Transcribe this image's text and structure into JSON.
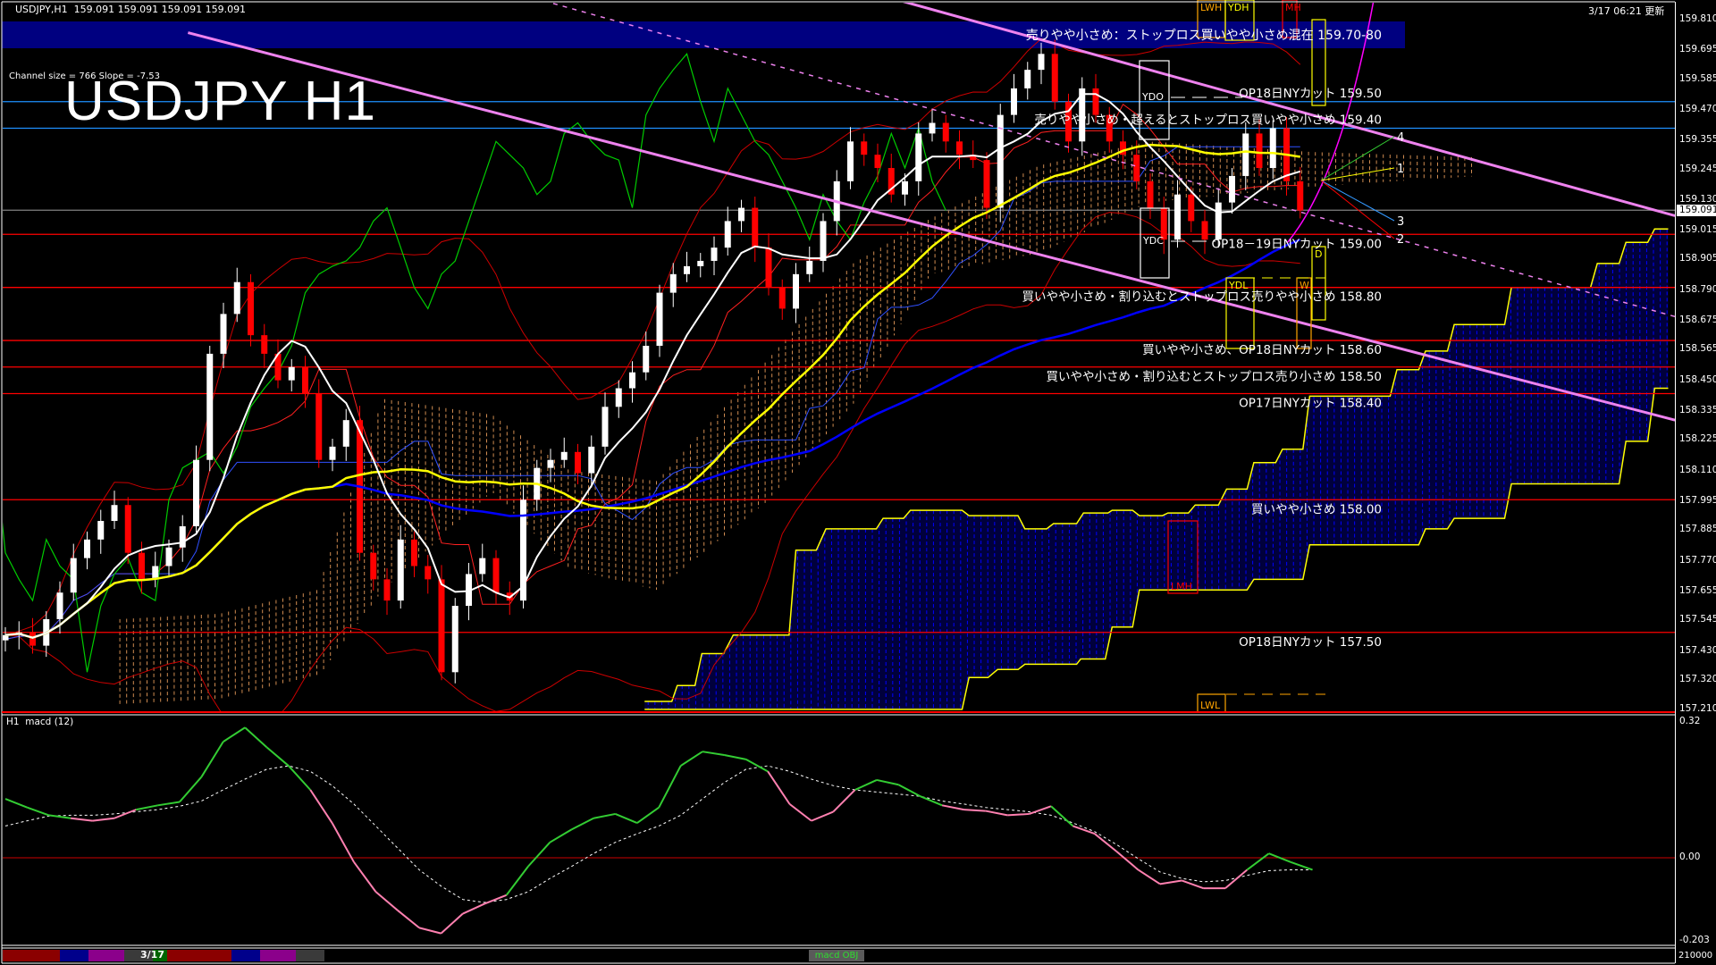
{
  "header": {
    "symbol_info": "USDJPY,H1  159.091 159.091 159.091 159.091",
    "updated": "3/17 06:21 更新",
    "channel_info": "Channel size = 766 Slope = -7.53",
    "big_title": "USDJPY H1"
  },
  "colors": {
    "background": "#000000",
    "up_candle": "#ffffff",
    "down_candle": "#ff0000",
    "banner": "#000080",
    "level_red": "#ff0000",
    "level_blue": "#1e90ff",
    "trendline": "#ee82ee",
    "cloud_future": "#0000ff",
    "cloud_edge": "#ffff00",
    "cloud_past": "#f4a460",
    "macd_up": "#33cc33",
    "macd_down": "#ff80b0",
    "ma_fast": "#ffffff",
    "ma_mid": "#ffff00",
    "ma_slow": "#0000ff",
    "chikou": "#00cc00"
  },
  "chart_data": {
    "type": "candlestick",
    "ylim": [
      157.21,
      159.81
    ],
    "y_ticks": [
      "159.810",
      "159.695",
      "159.585",
      "159.470",
      "159.355",
      "159.245",
      "159.130",
      "159.015",
      "158.905",
      "158.790",
      "158.675",
      "158.565",
      "158.450",
      "158.335",
      "158.225",
      "158.110",
      "157.995",
      "157.885",
      "157.770",
      "157.655",
      "157.545",
      "157.430",
      "157.320",
      "157.210"
    ],
    "current_price": "159.091",
    "first_open": 157.47,
    "closes": [
      157.49,
      157.5,
      157.45,
      157.55,
      157.65,
      157.78,
      157.85,
      157.92,
      157.98,
      157.8,
      157.7,
      157.75,
      157.82,
      157.9,
      158.15,
      158.55,
      158.7,
      158.82,
      158.62,
      158.55,
      158.45,
      158.5,
      158.4,
      158.15,
      158.2,
      158.3,
      157.8,
      157.7,
      157.62,
      157.85,
      157.75,
      157.7,
      157.35,
      157.6,
      157.72,
      157.78,
      157.65,
      157.62,
      158.0,
      158.12,
      158.15,
      158.18,
      158.1,
      158.2,
      158.35,
      158.42,
      158.48,
      158.58,
      158.78,
      158.85,
      158.88,
      158.9,
      158.95,
      159.05,
      159.1,
      158.95,
      158.8,
      158.72,
      158.85,
      158.9,
      159.05,
      159.2,
      159.35,
      159.3,
      159.25,
      159.15,
      159.2,
      159.38,
      159.42,
      159.35,
      159.3,
      159.28,
      159.1,
      159.45,
      159.55,
      159.62,
      159.68,
      159.5,
      159.35,
      159.55,
      159.45,
      159.35,
      159.3,
      159.2,
      159.1,
      158.98,
      159.15,
      159.05,
      158.98,
      159.12,
      159.22,
      159.38,
      159.25,
      159.4,
      159.2,
      159.09
    ],
    "future_cloud": {
      "upper_steps": [
        [
          46.9,
          48.9,
          157.24
        ],
        [
          49.3,
          50.6,
          157.3
        ],
        [
          51.1,
          52.7,
          157.42
        ],
        [
          53.4,
          57.5,
          157.49
        ],
        [
          58.0,
          59.5,
          157.81
        ],
        [
          60.2,
          63.9,
          157.89
        ],
        [
          64.4,
          65.9,
          157.93
        ],
        [
          66.4,
          70.2,
          157.96
        ],
        [
          70.7,
          74.3,
          157.94
        ],
        [
          74.8,
          76.4,
          157.89
        ],
        [
          76.9,
          78.6,
          157.91
        ],
        [
          79.1,
          80.9,
          157.95
        ],
        [
          81.2,
          82.7,
          157.96
        ],
        [
          83.2,
          84.9,
          157.94
        ],
        [
          85.3,
          86.8,
          157.95
        ],
        [
          87.3,
          89.0,
          157.98
        ],
        [
          89.6,
          91.1,
          158.04
        ],
        [
          91.6,
          93.2,
          158.14
        ],
        [
          93.7,
          95.2,
          158.19
        ],
        [
          95.7,
          101.6,
          158.39
        ],
        [
          102.1,
          103.7,
          158.49
        ],
        [
          104.2,
          105.8,
          158.56
        ],
        [
          106.3,
          110.0,
          158.66
        ],
        [
          110.5,
          116.3,
          158.8
        ],
        [
          116.8,
          118.4,
          158.89
        ],
        [
          118.9,
          120.5,
          158.97
        ],
        [
          121.0,
          122.0,
          159.02
        ]
      ],
      "lower_steps": [
        [
          46.9,
          70.2,
          157.21
        ],
        [
          70.7,
          72.1,
          157.33
        ],
        [
          72.8,
          74.3,
          157.36
        ],
        [
          74.8,
          78.6,
          157.38
        ],
        [
          78.9,
          80.7,
          157.4
        ],
        [
          81.2,
          82.7,
          157.52
        ],
        [
          83.2,
          91.1,
          157.66
        ],
        [
          91.6,
          95.2,
          157.7
        ],
        [
          95.7,
          103.7,
          157.83
        ],
        [
          104.2,
          105.8,
          157.89
        ],
        [
          106.3,
          110.0,
          157.93
        ],
        [
          110.5,
          118.4,
          158.06
        ],
        [
          118.9,
          120.5,
          158.22
        ],
        [
          121.0,
          122.0,
          158.42
        ]
      ]
    },
    "past_cloud": [
      [
        8.4,
        157.55,
        157.22
      ],
      [
        15.7,
        157.57,
        157.25
      ],
      [
        22.9,
        157.66,
        157.33
      ],
      [
        27.7,
        158.38,
        157.66
      ],
      [
        35.7,
        158.32,
        158.03
      ],
      [
        41.4,
        158.11,
        157.74
      ],
      [
        47.8,
        158.07,
        157.66
      ],
      [
        55.8,
        158.52,
        157.99
      ],
      [
        62.2,
        158.89,
        158.36
      ],
      [
        67.9,
        159.06,
        158.85
      ],
      [
        75.9,
        159.26,
        158.93
      ],
      [
        83.9,
        159.35,
        159.12
      ],
      [
        96.0,
        159.31,
        159.18
      ],
      [
        108.0,
        159.29,
        159.22
      ]
    ],
    "trendlines": [
      {
        "from": [
          13.4,
          159.76
        ],
        "to": [
          122.5,
          158.3
        ],
        "style": "solid"
      },
      {
        "from": [
          65.7,
          159.88
        ],
        "to": [
          122.5,
          159.07
        ],
        "style": "solid"
      },
      {
        "from": [
          39.5,
          159.88
        ],
        "to": [
          122.5,
          158.69
        ],
        "style": "dashed"
      }
    ],
    "hlines": [
      {
        "price": 159.5,
        "color": "#1e90ff"
      },
      {
        "price": 159.4,
        "color": "#1e90ff"
      },
      {
        "price": 159.091,
        "color": "#808080"
      },
      {
        "price": 159.0,
        "color": "#ff0000"
      },
      {
        "price": 158.8,
        "color": "#ff0000"
      },
      {
        "price": 158.6,
        "color": "#ff0000"
      },
      {
        "price": 158.5,
        "color": "#ff0000"
      },
      {
        "price": 158.4,
        "color": "#ff0000"
      },
      {
        "price": 158.0,
        "color": "#ff0000"
      },
      {
        "price": 157.5,
        "color": "#ff0000"
      }
    ],
    "banner_label": "売りやや小さめ：ストップロス買いやや小さめ混在 159.70-80",
    "levels": [
      {
        "price": 159.5,
        "label": "OP18日NYカット 159.50",
        "pos": "above"
      },
      {
        "price": 159.4,
        "label": "売りやや小さめ・超えるとストップロス買いやや小さめ 159.40",
        "pos": "above"
      },
      {
        "price": 159.0,
        "label": "OP18－19日NYカット 159.00",
        "pos": "below"
      },
      {
        "price": 158.8,
        "label": "買いやや小さめ・割り込むとストップロス売りやや小さめ 158.80",
        "pos": "below"
      },
      {
        "price": 158.6,
        "label": "買いやや小さめ、OP18日NYカット 158.60",
        "pos": "below"
      },
      {
        "price": 158.5,
        "label": "買いやや小さめ・割り込むとストップロス売り小さめ 158.50",
        "pos": "below"
      },
      {
        "price": 158.4,
        "label": "OP17日NYカット 158.40",
        "pos": "below"
      },
      {
        "price": 158.0,
        "label": "買いやや小さめ 158.00",
        "pos": "below"
      },
      {
        "price": 157.5,
        "label": "OP18日NYカット 157.50",
        "pos": "below"
      }
    ],
    "box_labels": {
      "ydo": "YDO",
      "ydc": "YDC",
      "ydl": "YDL",
      "w": "W",
      "d": "D",
      "lmh": "LMH",
      "lwl": "LWL",
      "lwh": "LWH",
      "ydh": "YDH",
      "mh": "MH"
    },
    "projection_labels": [
      "4",
      "1",
      "3",
      "2"
    ]
  },
  "macd": {
    "label": "H1  macd (12)",
    "ticks": [
      "0.32",
      "0.00",
      "-0.203"
    ],
    "ylim": [
      -0.203,
      0.32
    ],
    "main": [
      0.137,
      0.117,
      0.099,
      0.092,
      0.086,
      0.092,
      0.112,
      0.122,
      0.13,
      0.188,
      0.27,
      0.303,
      0.257,
      0.214,
      0.158,
      0.081,
      -0.01,
      -0.079,
      -0.122,
      -0.163,
      -0.176,
      -0.13,
      -0.107,
      -0.087,
      -0.02,
      0.036,
      0.066,
      0.092,
      0.102,
      0.081,
      0.117,
      0.214,
      0.247,
      0.239,
      0.229,
      0.201,
      0.125,
      0.086,
      0.107,
      0.158,
      0.181,
      0.17,
      0.143,
      0.122,
      0.112,
      0.109,
      0.099,
      0.102,
      0.12,
      0.074,
      0.056,
      0.015,
      -0.028,
      -0.061,
      -0.053,
      -0.071,
      -0.071,
      -0.028,
      0.01,
      -0.01,
      -0.028
    ],
    "signal": [
      0.074,
      0.086,
      0.097,
      0.099,
      0.099,
      0.102,
      0.107,
      0.112,
      0.12,
      0.132,
      0.158,
      0.183,
      0.206,
      0.214,
      0.201,
      0.168,
      0.125,
      0.074,
      0.023,
      -0.028,
      -0.066,
      -0.097,
      -0.104,
      -0.097,
      -0.079,
      -0.048,
      -0.02,
      0.01,
      0.036,
      0.056,
      0.074,
      0.099,
      0.137,
      0.175,
      0.206,
      0.214,
      0.201,
      0.183,
      0.168,
      0.158,
      0.153,
      0.148,
      0.143,
      0.132,
      0.125,
      0.117,
      0.112,
      0.107,
      0.099,
      0.081,
      0.061,
      0.031,
      -0.002,
      -0.033,
      -0.048,
      -0.056,
      -0.053,
      -0.041,
      -0.03,
      -0.028,
      -0.028
    ]
  },
  "bottom_bar": {
    "date": "3/17",
    "obj_button": "macd OBJ",
    "volume_scale": "210000"
  }
}
